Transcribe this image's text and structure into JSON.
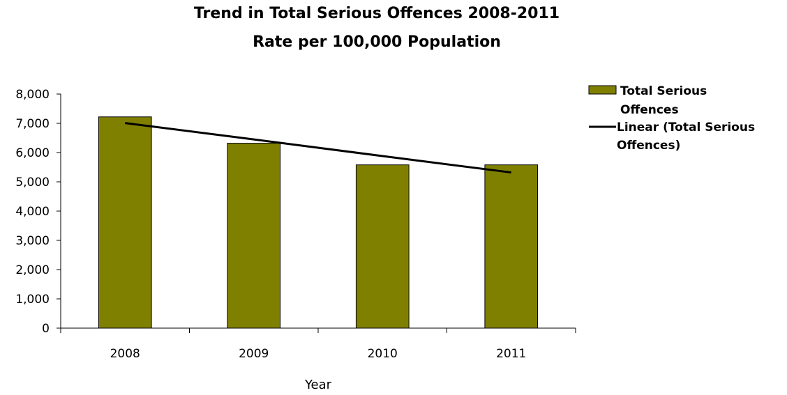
{
  "chart_data": {
    "type": "bar",
    "title": [
      "Trend in Total Serious Offences 2008-2011",
      "Rate per 100,000 Population"
    ],
    "xlabel": "Year",
    "ylabel": "",
    "categories": [
      "2008",
      "2009",
      "2010",
      "2011"
    ],
    "series": [
      {
        "name": "Total Serious Offences",
        "values": [
          7220,
          6320,
          5580,
          5580
        ],
        "color": "#808000"
      }
    ],
    "trendline": {
      "name": "Linear (Total Serious Offences)",
      "type": "linear",
      "values": [
        7010,
        6450,
        5880,
        5320
      ],
      "color": "#000000"
    },
    "ylim": [
      0,
      8000
    ],
    "yticks": [
      0,
      1000,
      2000,
      3000,
      4000,
      5000,
      6000,
      7000,
      8000
    ],
    "ytick_labels": [
      "0",
      "1,000",
      "2,000",
      "3,000",
      "4,000",
      "5,000",
      "6,000",
      "7,000",
      "8,000"
    ],
    "grid": false,
    "legend": {
      "position": "right",
      "entries": [
        {
          "lines": [
            "Total Serious",
            "Offences"
          ],
          "marker": "bar"
        },
        {
          "lines": [
            "Linear (Total Serious",
            "Offences)"
          ],
          "marker": "line"
        }
      ]
    }
  }
}
